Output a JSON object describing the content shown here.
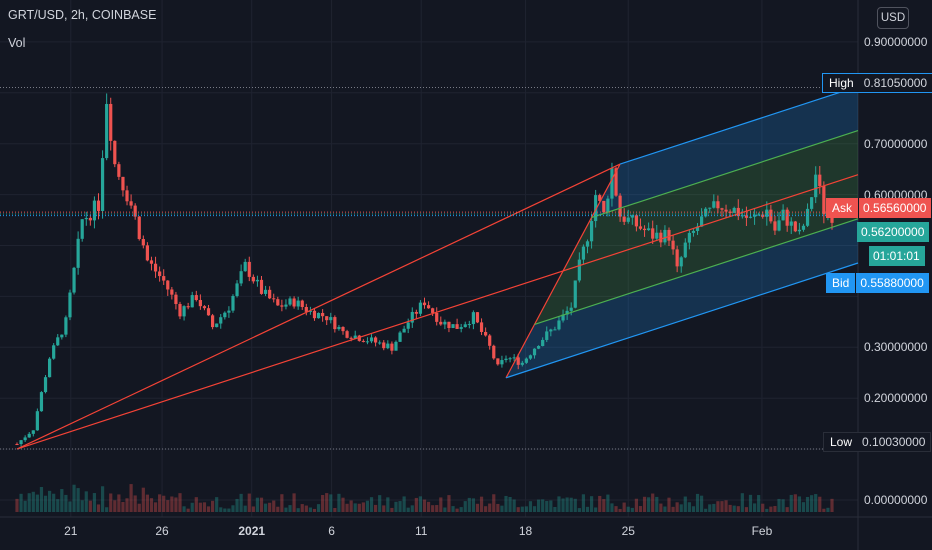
{
  "header": {
    "symbol_line": "GRT/USD, 2h, COINBASE",
    "indicator": "Vol"
  },
  "currency_button": "USD",
  "colors": {
    "background": "#131722",
    "up": "#26a69a",
    "down": "#ef5350",
    "pitchfork_outer": "#2196f3",
    "pitchfork_median": "#f44336",
    "pitchfork_inner": "#4caf50"
  },
  "price_labels": {
    "high": {
      "name": "High",
      "value": "0.81050000"
    },
    "ask": {
      "name": "Ask",
      "value": "0.56560000"
    },
    "last": {
      "value": "0.56200000",
      "countdown": "01:01:01"
    },
    "bid": {
      "name": "Bid",
      "value": "0.55880000"
    },
    "low": {
      "name": "Low",
      "value": "0.10030000"
    }
  },
  "chart_data": {
    "type": "candlestick",
    "y_ticks": [
      "0.90000000",
      "0.70000000",
      "0.60000000",
      "0.30000000",
      "0.20000000",
      "0.00000000"
    ],
    "x_ticks": [
      "21",
      "26",
      "2021",
      "6",
      "11",
      "18",
      "25",
      "Feb"
    ],
    "ylim": [
      0.0,
      0.9
    ],
    "grid": true,
    "series": [
      {
        "name": "GRT/USD",
        "points": [
          [
            0,
            0.11
          ],
          [
            1,
            0.14
          ],
          [
            2,
            0.28
          ],
          [
            3,
            0.35
          ],
          [
            4,
            0.55
          ],
          [
            5,
            0.58
          ],
          [
            5.5,
            0.79
          ],
          [
            6,
            0.66
          ],
          [
            7,
            0.58
          ],
          [
            8,
            0.47
          ],
          [
            9,
            0.43
          ],
          [
            10,
            0.37
          ],
          [
            11,
            0.4
          ],
          [
            12,
            0.34
          ],
          [
            13,
            0.38
          ],
          [
            14,
            0.46
          ],
          [
            15,
            0.41
          ],
          [
            16,
            0.38
          ],
          [
            17,
            0.39
          ],
          [
            18,
            0.37
          ],
          [
            19,
            0.36
          ],
          [
            20,
            0.33
          ],
          [
            21,
            0.32
          ],
          [
            22,
            0.31
          ],
          [
            23,
            0.3
          ],
          [
            24,
            0.35
          ],
          [
            25,
            0.39
          ],
          [
            26,
            0.35
          ],
          [
            27,
            0.34
          ],
          [
            28,
            0.36
          ],
          [
            29,
            0.3
          ],
          [
            29.5,
            0.26
          ],
          [
            30,
            0.28
          ],
          [
            31,
            0.27
          ],
          [
            32,
            0.31
          ],
          [
            33,
            0.34
          ],
          [
            34,
            0.38
          ],
          [
            34.5,
            0.46
          ],
          [
            35,
            0.52
          ],
          [
            35.5,
            0.6
          ],
          [
            36,
            0.56
          ],
          [
            36.5,
            0.65
          ],
          [
            37,
            0.56
          ],
          [
            38,
            0.54
          ],
          [
            39,
            0.52
          ],
          [
            40,
            0.52
          ],
          [
            40.5,
            0.45
          ],
          [
            41,
            0.5
          ],
          [
            42,
            0.55
          ],
          [
            43,
            0.58
          ],
          [
            44,
            0.57
          ],
          [
            45,
            0.55
          ],
          [
            46,
            0.57
          ],
          [
            46.5,
            0.53
          ],
          [
            47,
            0.56
          ],
          [
            48,
            0.52
          ],
          [
            48.5,
            0.56
          ],
          [
            49,
            0.64
          ],
          [
            49.5,
            0.57
          ],
          [
            50,
            0.56
          ]
        ]
      }
    ],
    "pitchfork": {
      "pivots": [
        {
          "x": 0,
          "price": 0.1
        },
        {
          "x": 37,
          "price": 0.66
        },
        {
          "x": 30,
          "price": 0.24
        }
      ]
    }
  }
}
